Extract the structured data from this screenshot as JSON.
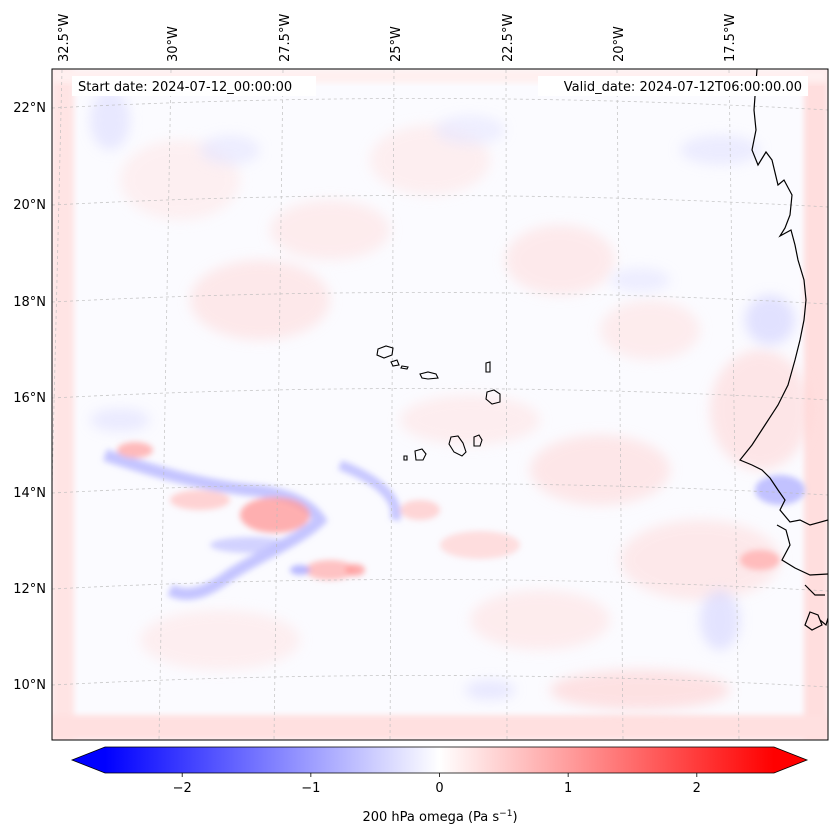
{
  "map": {
    "start_date_text": "Start date: 2024-07-12_00:00:00",
    "valid_date_text": "Valid_date: 2024-07-12T06:00:00.00",
    "lon_labels": [
      "32.5°W",
      "30°W",
      "27.5°W",
      "25°W",
      "22.5°W",
      "20°W",
      "17.5°W"
    ],
    "lat_labels": [
      "22°N",
      "20°N",
      "18°N",
      "16°N",
      "14°N",
      "12°N",
      "10°N"
    ],
    "coastline_color": "#000000",
    "gridline_color": "#bbbbbb"
  },
  "colorbar": {
    "label_main": "200 hPa omega (Pa s",
    "label_exp": "−1",
    "label_close": ")",
    "ticks": [
      "−2",
      "−1",
      "0",
      "1",
      "2"
    ],
    "tick_values": [
      -2,
      -1,
      0,
      1,
      2
    ],
    "vmin": -2.6,
    "vmax": 2.6,
    "cmap": "bwr",
    "colors": {
      "negative": "#0000ff",
      "zero": "#ffffff",
      "positive": "#ff0000"
    }
  }
}
